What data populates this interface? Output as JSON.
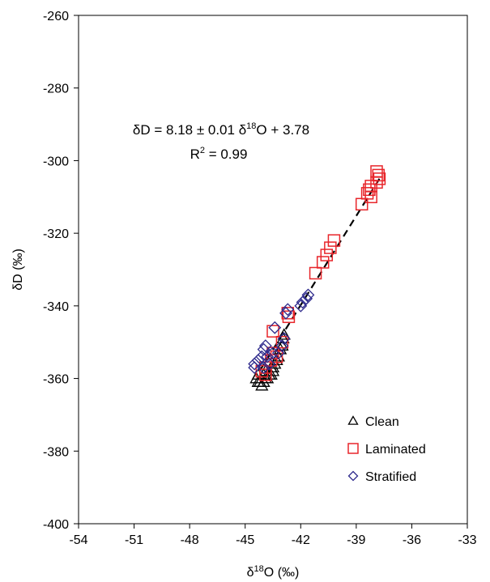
{
  "chart_data": {
    "type": "scatter",
    "xlabel_parts": {
      "prefix": "δ",
      "sup": "18",
      "rest": "O (‰)"
    },
    "ylabel": "δD (‰)",
    "xlim": [
      -54,
      -33
    ],
    "ylim": [
      -400,
      -260
    ],
    "xticks": [
      -54,
      -51,
      -48,
      -45,
      -42,
      -39,
      -36,
      -33
    ],
    "yticks": [
      -260,
      -280,
      -300,
      -320,
      -340,
      -360,
      -380,
      -400
    ],
    "grid": false,
    "legend_placement": "bottom-right",
    "annotation": {
      "equation_parts": {
        "a": "δD = 8.18 ± 0.01 δ",
        "sup": "18",
        "b": "O + 3.78"
      },
      "r2_parts": {
        "a": "R",
        "sup": "2",
        "b": " = 0.99"
      }
    },
    "fit_line": {
      "slope": 8.18,
      "intercept": 3.78,
      "x_range": [
        -44.2,
        -37.6
      ],
      "style": "dashed"
    },
    "series": [
      {
        "name": "Clean",
        "marker": "triangle",
        "color": "#000000",
        "points": [
          [
            -44.3,
            -361
          ],
          [
            -44.2,
            -361
          ],
          [
            -44.1,
            -362
          ],
          [
            -44.0,
            -361
          ],
          [
            -43.9,
            -360
          ],
          [
            -43.8,
            -360
          ],
          [
            -43.7,
            -359
          ],
          [
            -43.6,
            -359
          ],
          [
            -43.5,
            -358
          ],
          [
            -43.5,
            -357
          ],
          [
            -44.4,
            -360
          ],
          [
            -44.3,
            -359
          ],
          [
            -43.4,
            -356
          ],
          [
            -43.3,
            -355
          ],
          [
            -43.2,
            -354
          ],
          [
            -43.1,
            -352
          ],
          [
            -43.0,
            -351
          ],
          [
            -42.95,
            -349
          ],
          [
            -42.9,
            -348
          ],
          [
            -43.6,
            -357
          ],
          [
            -43.9,
            -358
          ],
          [
            -44.0,
            -359
          ]
        ]
      },
      {
        "name": "Laminated",
        "marker": "square",
        "color": "#e8262b",
        "points": [
          [
            -37.9,
            -303
          ],
          [
            -37.8,
            -304
          ],
          [
            -37.75,
            -305
          ],
          [
            -37.9,
            -306
          ],
          [
            -38.2,
            -307
          ],
          [
            -38.3,
            -308
          ],
          [
            -38.4,
            -309
          ],
          [
            -38.2,
            -310
          ],
          [
            -38.7,
            -312
          ],
          [
            -40.2,
            -322
          ],
          [
            -40.4,
            -324
          ],
          [
            -40.6,
            -326
          ],
          [
            -40.8,
            -328
          ],
          [
            -41.2,
            -331
          ],
          [
            -42.7,
            -342
          ],
          [
            -42.65,
            -343
          ],
          [
            -43.5,
            -347
          ],
          [
            -43.0,
            -350
          ],
          [
            -43.5,
            -353
          ],
          [
            -43.3,
            -354
          ],
          [
            -43.6,
            -355
          ],
          [
            -43.9,
            -357
          ],
          [
            -44.1,
            -358
          ],
          [
            -43.9,
            -359
          ]
        ]
      },
      {
        "name": "Stratified",
        "marker": "diamond",
        "color": "#2e2a8c",
        "points": [
          [
            -41.6,
            -337
          ],
          [
            -41.7,
            -338
          ],
          [
            -41.9,
            -339
          ],
          [
            -42.0,
            -340
          ],
          [
            -42.7,
            -341
          ],
          [
            -42.8,
            -342
          ],
          [
            -43.4,
            -346
          ],
          [
            -42.9,
            -349
          ],
          [
            -43.0,
            -351
          ],
          [
            -43.9,
            -351
          ],
          [
            -44.0,
            -352
          ],
          [
            -44.1,
            -354
          ],
          [
            -44.3,
            -355
          ],
          [
            -44.5,
            -356
          ],
          [
            -44.5,
            -357
          ],
          [
            -44.0,
            -357
          ],
          [
            -43.8,
            -354
          ],
          [
            -43.5,
            -353
          ],
          [
            -43.2,
            -353
          ],
          [
            -43.7,
            -356
          ]
        ]
      }
    ]
  }
}
